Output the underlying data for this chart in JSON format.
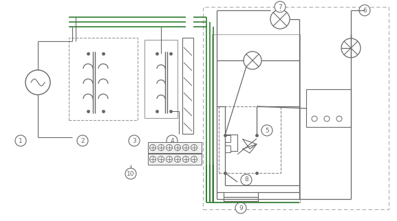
{
  "bg_color": "#ffffff",
  "lc": "#666666",
  "gc": "#2d7d2d",
  "fig_width": 5.77,
  "fig_height": 3.22,
  "dpi": 100
}
